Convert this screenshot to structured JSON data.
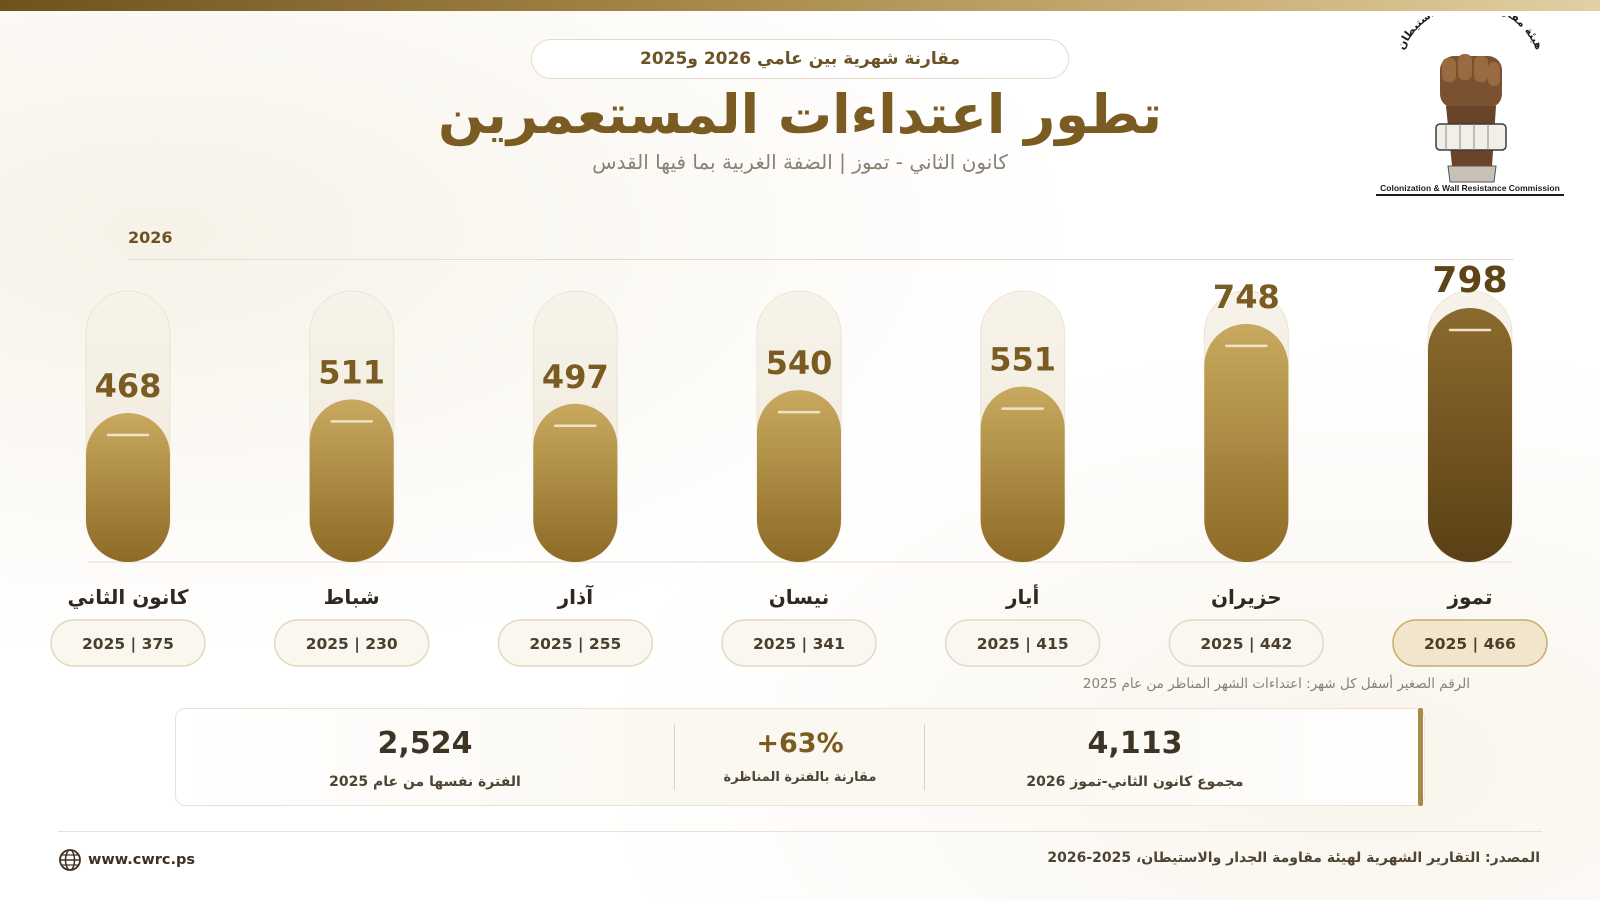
{
  "header": {
    "badge": "مقارنة شهرية بين عامي 2026 و2025",
    "title": "تطور اعتداءات المستعمرين",
    "subtitle": "كانون الثاني - تموز | الضفة الغربية بما فيها القدس"
  },
  "logo": {
    "arc_text": "هيئة مقاومة الجدار والاستيطان",
    "caption": "Colonization & Wall Resistance Commission",
    "icon": "raised-fist-icon"
  },
  "chart_data": {
    "type": "bar",
    "series_label": "2026",
    "categories": [
      "تموز",
      "حزيران",
      "أيار",
      "نيسان",
      "آذار",
      "شباط",
      "كانون الثاني"
    ],
    "series": [
      {
        "name": "2026",
        "values": [
          798,
          748,
          551,
          540,
          497,
          511,
          468
        ]
      },
      {
        "name": "2025",
        "values": [
          466,
          442,
          415,
          341,
          255,
          230,
          375
        ]
      }
    ],
    "ylim": [
      0,
      798
    ],
    "legend_2025": [
      "2025 | 466",
      "2025 | 442",
      "2025 | 415",
      "2025 | 341",
      "2025 | 255",
      "2025 | 230",
      "2025 | 375"
    ],
    "note": "الرقم الصغير أسفل كل شهر: اعتداءات الشهر المناظر من عام 2025"
  },
  "summary": {
    "total_value": "4,113",
    "total_label": "مجموع كانون الثاني-تموز 2026",
    "change_value": "+63%",
    "change_label": "مقارنة بالفترة المناظرة",
    "prev_value": "2,524",
    "prev_label": "الفترة نفسها من عام 2025"
  },
  "footer": {
    "website": "www.cwrc.ps",
    "source": "المصدر: التقارير الشهرية لهيئة مقاومة الجدار والاستيطان، 2025-2026"
  },
  "colors": {
    "accent": "#7a5c22",
    "bar_light": "#c4a35a",
    "bar_dark": "#5e4416",
    "capsule": "#f6f1e6"
  }
}
